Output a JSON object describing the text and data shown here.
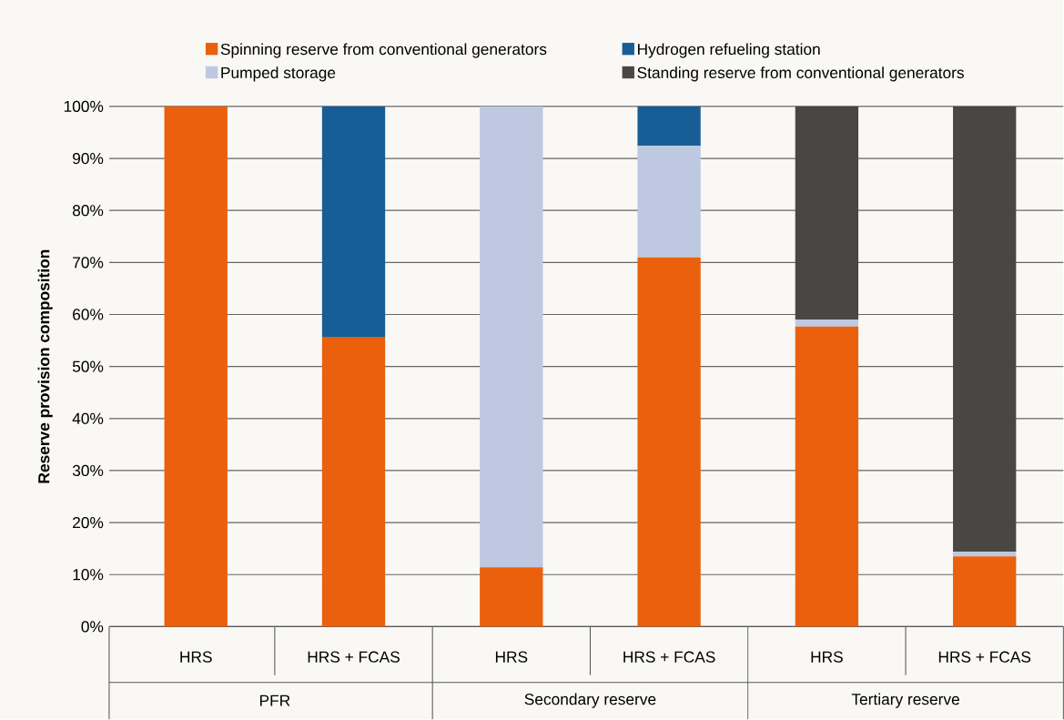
{
  "chart_data": {
    "type": "bar",
    "stacked": true,
    "ylabel": "Reserve provision composition",
    "categories": [
      "HRS",
      "HRS + FCAS",
      "HRS",
      "HRS + FCAS",
      "HRS",
      "HRS + FCAS"
    ],
    "series": [
      {
        "name": "Spinning reserve from conventional generators",
        "color": "#ea600c",
        "values": [
          100,
          55.6,
          11.4,
          71.0,
          57.7,
          13.5
        ]
      },
      {
        "name": "Pumped storage",
        "color": "#bec8e0",
        "values": [
          0,
          0,
          88.6,
          21.4,
          1.3,
          0.9
        ]
      },
      {
        "name": "Hydrogen refueling station",
        "color": "#175e96",
        "values": [
          0,
          44.4,
          0,
          7.6,
          0,
          0
        ]
      },
      {
        "name": "Standing reserve from conventional generators",
        "color": "#4a4644",
        "values": [
          0,
          0,
          0,
          0,
          41.0,
          85.6
        ]
      }
    ],
    "annotations": [
      "PFR",
      "Secondary reserve",
      "Tertiary reserve"
    ],
    "ylim": [
      0,
      100
    ],
    "yticks": [
      {
        "value": 0,
        "label": "0%"
      },
      {
        "value": 10,
        "label": "10%"
      },
      {
        "value": 20,
        "label": "20%"
      },
      {
        "value": 30,
        "label": "30%"
      },
      {
        "value": 40,
        "label": "40%"
      },
      {
        "value": 50,
        "label": "50%"
      },
      {
        "value": 60,
        "label": "60%"
      },
      {
        "value": 70,
        "label": "70%"
      },
      {
        "value": 80,
        "label": "80%"
      },
      {
        "value": 90,
        "label": "90%"
      },
      {
        "value": 100,
        "label": "100%"
      }
    ],
    "grid": "y",
    "legend": "top"
  }
}
